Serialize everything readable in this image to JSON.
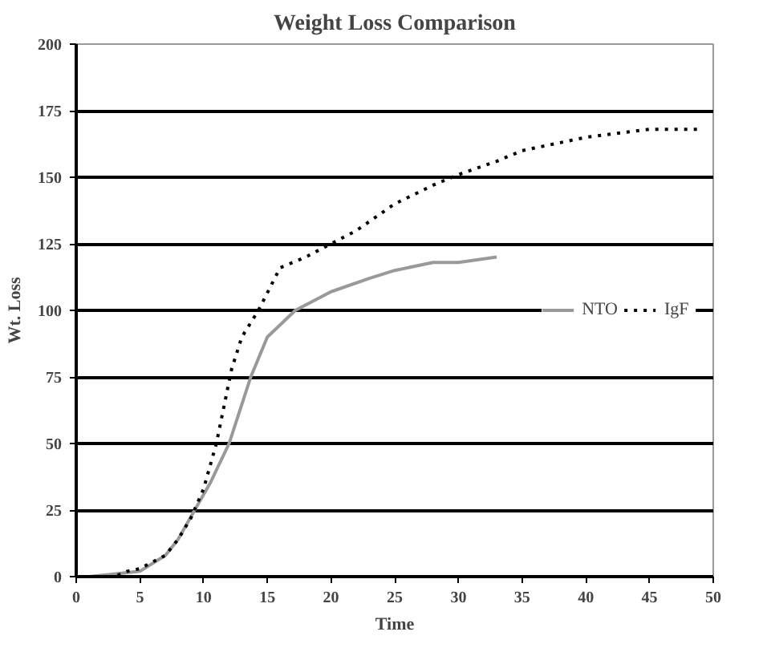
{
  "chart_data": {
    "type": "line",
    "title": "Weight Loss Comparison",
    "xlabel": "Time",
    "ylabel": "Wt. Loss",
    "xlim": [
      0,
      50
    ],
    "xticks": [
      0,
      5,
      10,
      15,
      20,
      25,
      30,
      35,
      40,
      45,
      50
    ],
    "ylim": [
      0,
      200
    ],
    "yticks": [
      0,
      25,
      50,
      75,
      100,
      125,
      150,
      175,
      200
    ],
    "grid": "y",
    "legend": "right",
    "series": [
      {
        "name": "NTO",
        "color": "#999999",
        "line_style": "solid",
        "x": [
          1,
          3,
          5,
          7,
          8,
          9.3,
          10.5,
          12,
          13.7,
          15,
          17.2,
          20,
          23,
          25,
          28,
          30,
          33
        ],
        "values": [
          0,
          1,
          2,
          8,
          14,
          25,
          35,
          50,
          75,
          90,
          100,
          107,
          112,
          115,
          118,
          118,
          120
        ]
      },
      {
        "name": "IgF",
        "color": "#000000",
        "line_style": "dotted",
        "x": [
          1,
          3,
          4,
          5,
          7,
          8,
          9,
          10,
          11,
          12.2,
          13,
          14.3,
          16,
          18,
          20,
          22,
          25,
          28,
          30,
          33,
          35,
          38,
          40,
          45,
          49
        ],
        "values": [
          0,
          0,
          2,
          3,
          8,
          14,
          22,
          33,
          50,
          78,
          90,
          100,
          116,
          120,
          125,
          130,
          140,
          147,
          151,
          156,
          160,
          163,
          165,
          168,
          168
        ]
      }
    ]
  }
}
